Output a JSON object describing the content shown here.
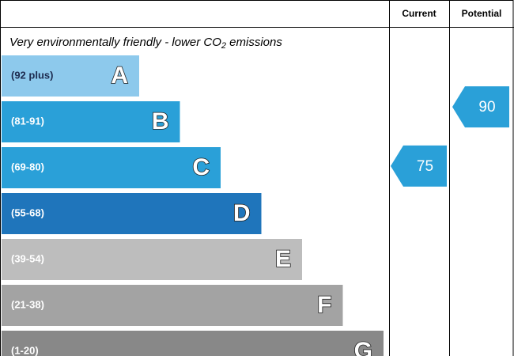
{
  "chart_data": {
    "type": "rating",
    "columns": [
      "Current",
      "Potential"
    ],
    "title_parts": [
      "Very environmentally friendly - lower CO",
      "2",
      " emissions"
    ],
    "bands": [
      {
        "range": "(92 plus)",
        "letter": "A",
        "color": "#8dc9ec",
        "text_color": "#1d2b4f"
      },
      {
        "range": "(81-91)",
        "letter": "B",
        "color": "#2aa0d8",
        "text_color": "#ffffff"
      },
      {
        "range": "(69-80)",
        "letter": "C",
        "color": "#2aa0d8",
        "text_color": "#ffffff"
      },
      {
        "range": "(55-68)",
        "letter": "D",
        "color": "#1f75bb",
        "text_color": "#ffffff"
      },
      {
        "range": "(39-54)",
        "letter": "E",
        "color": "#bdbdbd",
        "text_color": "#ffffff"
      },
      {
        "range": "(21-38)",
        "letter": "F",
        "color": "#a3a3a3",
        "text_color": "#ffffff"
      },
      {
        "range": "(1-20)",
        "letter": "G",
        "color": "#888888",
        "text_color": "#ffffff"
      }
    ],
    "current": 75,
    "potential": 90
  }
}
